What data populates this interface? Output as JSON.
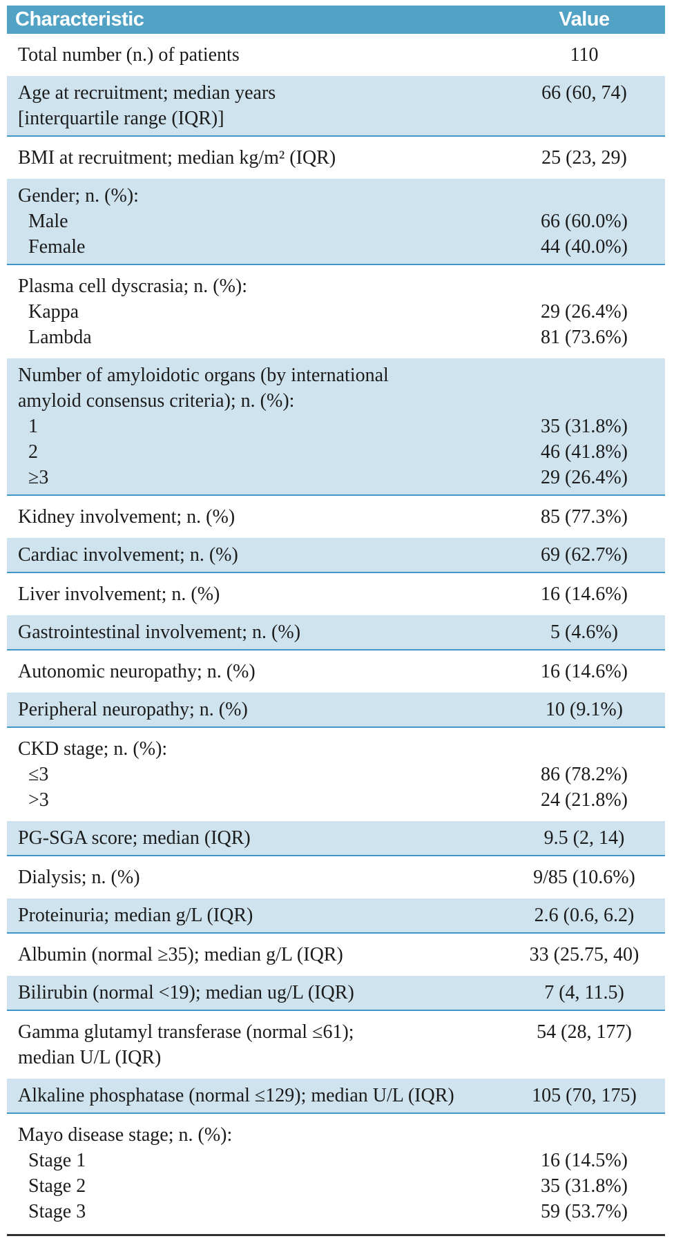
{
  "colors": {
    "header_bg": "#52a2c6",
    "header_text": "#ffffff",
    "row_highlight": "#cfe3ee",
    "row_border": "#3e97c6",
    "body_text": "#1b1b1b",
    "bottom_rule": "#303030"
  },
  "table": {
    "header": {
      "characteristic": "Characteristic",
      "value": "Value"
    },
    "sections": [
      {
        "shade": "white",
        "lines": [
          {
            "label": "Total number (n.) of patients",
            "value": "110",
            "indent": false
          }
        ]
      },
      {
        "shade": "blue",
        "lines": [
          {
            "label": "Age at recruitment; median years",
            "value": "66 (60, 74)",
            "indent": false
          },
          {
            "label": "[interquartile range (IQR)]",
            "value": "",
            "indent": false
          }
        ]
      },
      {
        "shade": "white",
        "lines": [
          {
            "label": "BMI at recruitment; median kg/m² (IQR)",
            "value": "25 (23, 29)",
            "indent": false
          }
        ]
      },
      {
        "shade": "blue",
        "lines": [
          {
            "label": "Gender; n. (%):",
            "value": "",
            "indent": false
          },
          {
            "label": "Male",
            "value": "66 (60.0%)",
            "indent": true
          },
          {
            "label": "Female",
            "value": "44 (40.0%)",
            "indent": true
          }
        ]
      },
      {
        "shade": "white",
        "lines": [
          {
            "label": "Plasma cell dyscrasia; n. (%):",
            "value": "",
            "indent": false
          },
          {
            "label": "Kappa",
            "value": "29 (26.4%)",
            "indent": true
          },
          {
            "label": "Lambda",
            "value": "81 (73.6%)",
            "indent": true
          }
        ]
      },
      {
        "shade": "blue",
        "lines": [
          {
            "label": "Number of amyloidotic organs (by international",
            "value": "",
            "indent": false
          },
          {
            "label": "amyloid consensus criteria); n. (%):",
            "value": "",
            "indent": false
          },
          {
            "label": "1",
            "value": "35 (31.8%)",
            "indent": true
          },
          {
            "label": "2",
            "value": "46 (41.8%)",
            "indent": true
          },
          {
            "label": "≥3",
            "value": "29 (26.4%)",
            "indent": true
          }
        ]
      },
      {
        "shade": "white",
        "lines": [
          {
            "label": "Kidney involvement; n. (%)",
            "value": "85 (77.3%)",
            "indent": false
          }
        ]
      },
      {
        "shade": "blue",
        "lines": [
          {
            "label": "Cardiac involvement; n. (%)",
            "value": "69 (62.7%)",
            "indent": false
          }
        ]
      },
      {
        "shade": "white",
        "lines": [
          {
            "label": "Liver involvement; n. (%)",
            "value": "16 (14.6%)",
            "indent": false
          }
        ]
      },
      {
        "shade": "blue",
        "lines": [
          {
            "label": "Gastrointestinal involvement; n. (%)",
            "value": "5 (4.6%)",
            "indent": false
          }
        ]
      },
      {
        "shade": "white",
        "lines": [
          {
            "label": "Autonomic neuropathy; n. (%)",
            "value": "16 (14.6%)",
            "indent": false
          }
        ]
      },
      {
        "shade": "blue",
        "lines": [
          {
            "label": "Peripheral neuropathy; n. (%)",
            "value": "10 (9.1%)",
            "indent": false
          }
        ]
      },
      {
        "shade": "white",
        "lines": [
          {
            "label": "CKD stage; n. (%):",
            "value": "",
            "indent": false
          },
          {
            "label": "≤3",
            "value": "86 (78.2%)",
            "indent": true
          },
          {
            "label": ">3",
            "value": "24 (21.8%)",
            "indent": true
          }
        ]
      },
      {
        "shade": "blue",
        "lines": [
          {
            "label": "PG-SGA score; median (IQR)",
            "value": "9.5 (2, 14)",
            "indent": false
          }
        ]
      },
      {
        "shade": "white",
        "lines": [
          {
            "label": "Dialysis; n. (%)",
            "value": "9/85 (10.6%)",
            "indent": false
          }
        ]
      },
      {
        "shade": "blue",
        "lines": [
          {
            "label": "Proteinuria; median g/L (IQR)",
            "value": "2.6 (0.6, 6.2)",
            "indent": false
          }
        ]
      },
      {
        "shade": "white",
        "lines": [
          {
            "label": "Albumin (normal ≥35); median g/L (IQR)",
            "value": "33 (25.75, 40)",
            "indent": false
          }
        ]
      },
      {
        "shade": "blue",
        "lines": [
          {
            "label": "Bilirubin (normal <19); median ug/L (IQR)",
            "value": "7 (4, 11.5)",
            "indent": false
          }
        ]
      },
      {
        "shade": "white",
        "lines": [
          {
            "label": "Gamma glutamyl transferase (normal ≤61);",
            "value": "54 (28, 177)",
            "indent": false
          },
          {
            "label": "median U/L (IQR)",
            "value": "",
            "indent": false
          }
        ]
      },
      {
        "shade": "blue",
        "lines": [
          {
            "label": "Alkaline phosphatase (normal ≤129); median U/L (IQR)",
            "value": "105 (70, 175)",
            "indent": false
          }
        ]
      },
      {
        "shade": "white",
        "lines": [
          {
            "label": "Mayo disease stage; n. (%):",
            "value": "",
            "indent": false
          },
          {
            "label": "Stage 1",
            "value": "16 (14.5%)",
            "indent": true
          },
          {
            "label": "Stage 2",
            "value": "35 (31.8%)",
            "indent": true
          },
          {
            "label": "Stage 3",
            "value": "59 (53.7%)",
            "indent": true
          }
        ]
      }
    ]
  }
}
